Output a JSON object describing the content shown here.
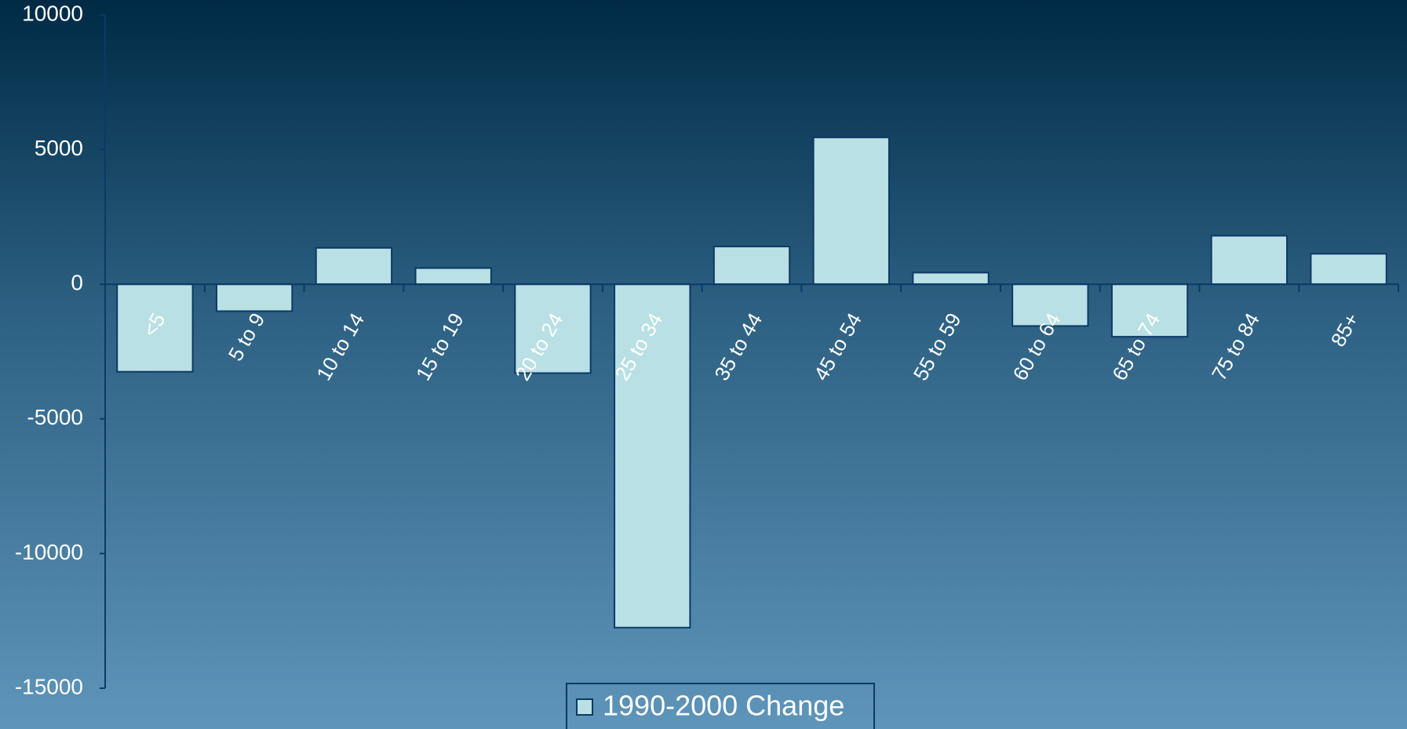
{
  "chart_data": {
    "type": "bar",
    "categories": [
      "<5",
      "5 to 9",
      "10 to 14",
      "15 to 19",
      "20 to 24",
      "25 to 34",
      "35 to 44",
      "45 to 54",
      "55 to 59",
      "60 to 64",
      "65 to 74",
      "75 to 84",
      "85+"
    ],
    "series": [
      {
        "name": "1990-2000 Change",
        "color": "#b9e0e4",
        "values": [
          -3250,
          -1000,
          1350,
          600,
          -3300,
          -12750,
          1400,
          5450,
          430,
          -1550,
          -1950,
          1800,
          1130
        ]
      }
    ],
    "ylim": [
      -15000,
      10000
    ],
    "yticks": [
      -15000,
      -10000,
      -5000,
      0,
      5000,
      10000
    ],
    "grid": false,
    "legend": "bottom"
  }
}
